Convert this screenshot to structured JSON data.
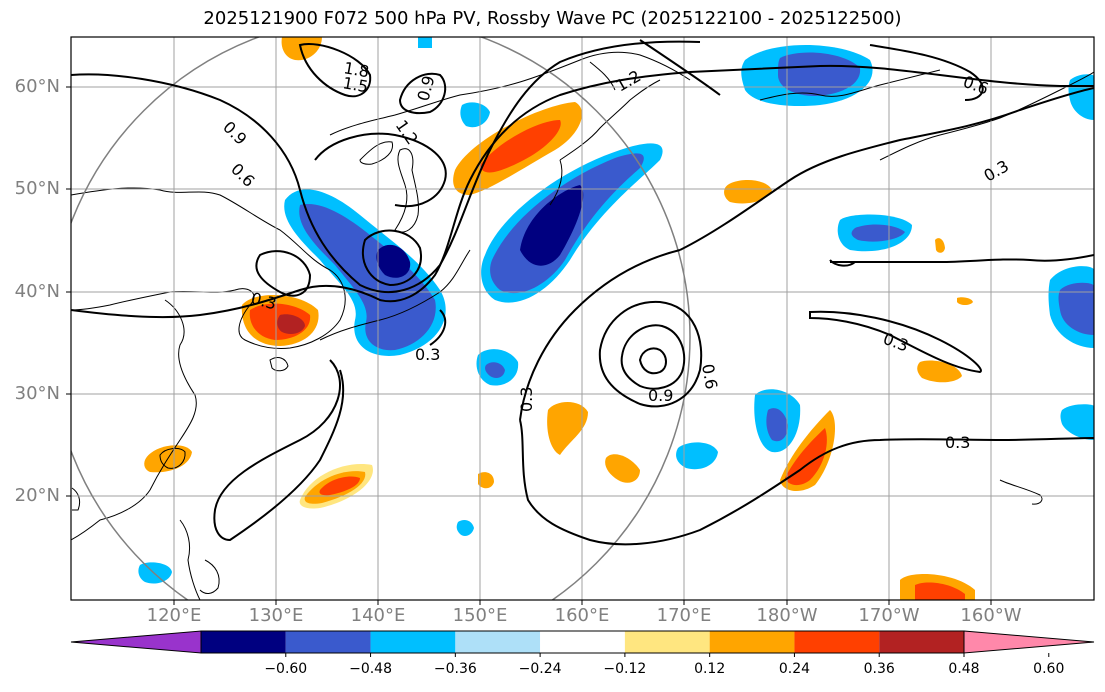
{
  "title": "2025121900 F072 500 hPa PV, Rossby Wave PC (2025122100 - 2025122500)",
  "lat_labels": [
    "60°N",
    "50°N",
    "40°N",
    "30°N",
    "20°N"
  ],
  "lon_labels": [
    "120°E",
    "130°E",
    "140°E",
    "150°E",
    "160°E",
    "170°E",
    "180°W",
    "170°W",
    "160°W"
  ],
  "contour_labels": [
    "1.8",
    "1.5",
    "0.9",
    "1.2",
    "0.9",
    "0.6",
    "0.3",
    "0.3",
    "0.3",
    "0.3",
    "0.9",
    "0.6",
    "0.3",
    "0.3",
    "0.6",
    "1.2"
  ],
  "colorbar": {
    "ticks": [
      "−0.60",
      "−0.48",
      "−0.36",
      "−0.24",
      "−0.12",
      "0.12",
      "0.24",
      "0.36",
      "0.48",
      "0.60"
    ],
    "colors": [
      "#9933cc",
      "#000080",
      "#3a5acd",
      "#00bfff",
      "#aee0f8",
      "#ffffff",
      "#ffe680",
      "#ffa500",
      "#ff4000",
      "#b22222",
      "#ff88aa"
    ]
  }
}
